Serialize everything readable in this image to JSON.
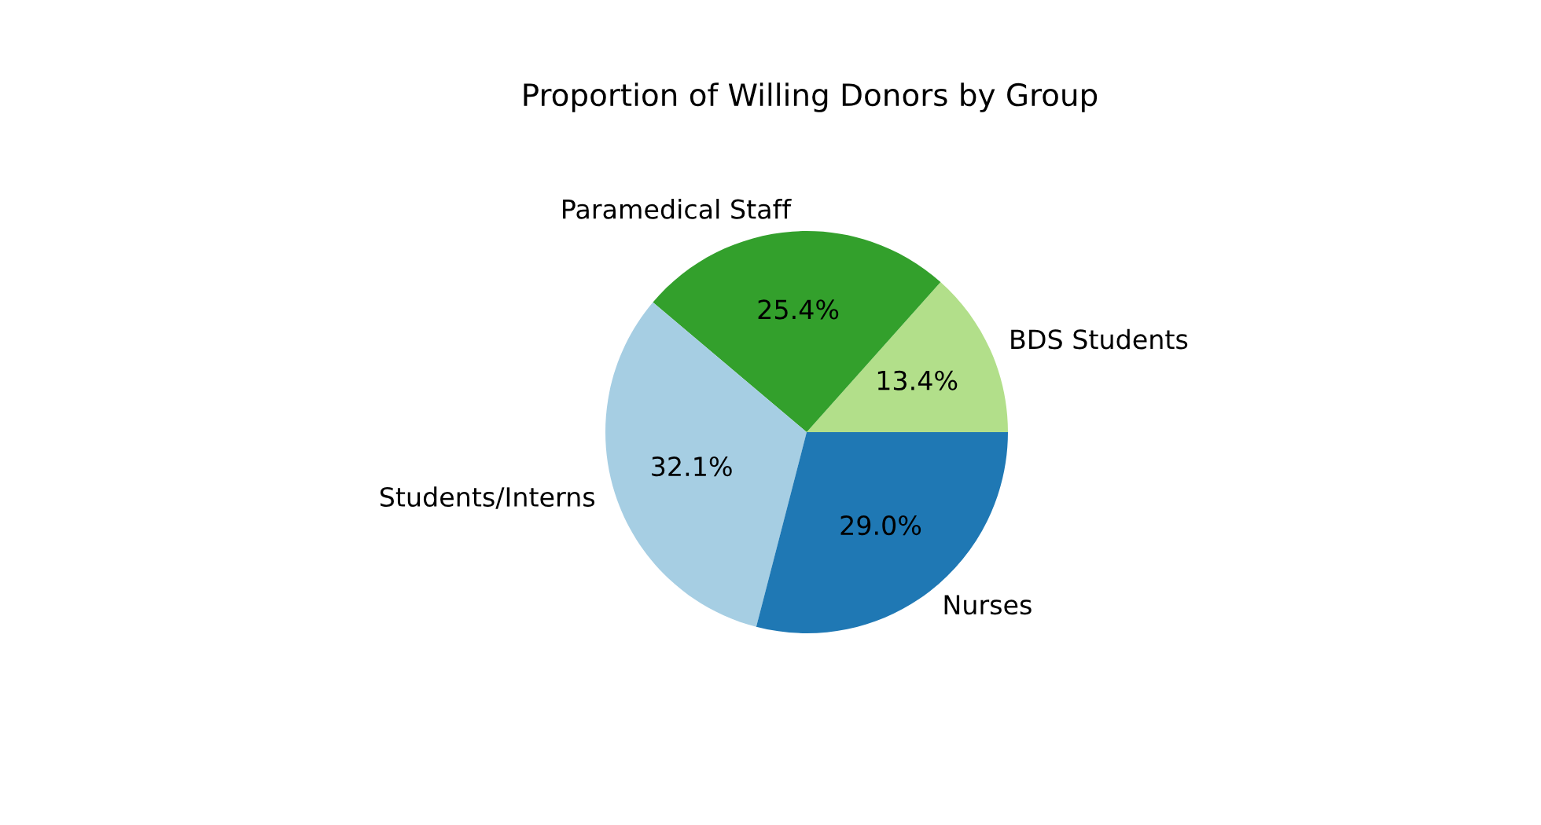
{
  "chart_data": {
    "type": "pie",
    "title": "Proportion of Willing Donors by Group",
    "categories": [
      "BDS Students",
      "Paramedical Staff",
      "Students/Interns",
      "Nurses"
    ],
    "values": [
      13.4,
      25.4,
      32.1,
      29.0
    ],
    "value_labels": [
      "13.4%",
      "25.4%",
      "32.1%",
      "29.0%"
    ],
    "colors": [
      "#b2df8a",
      "#33a02c",
      "#a6cee3",
      "#1f78b4"
    ]
  }
}
